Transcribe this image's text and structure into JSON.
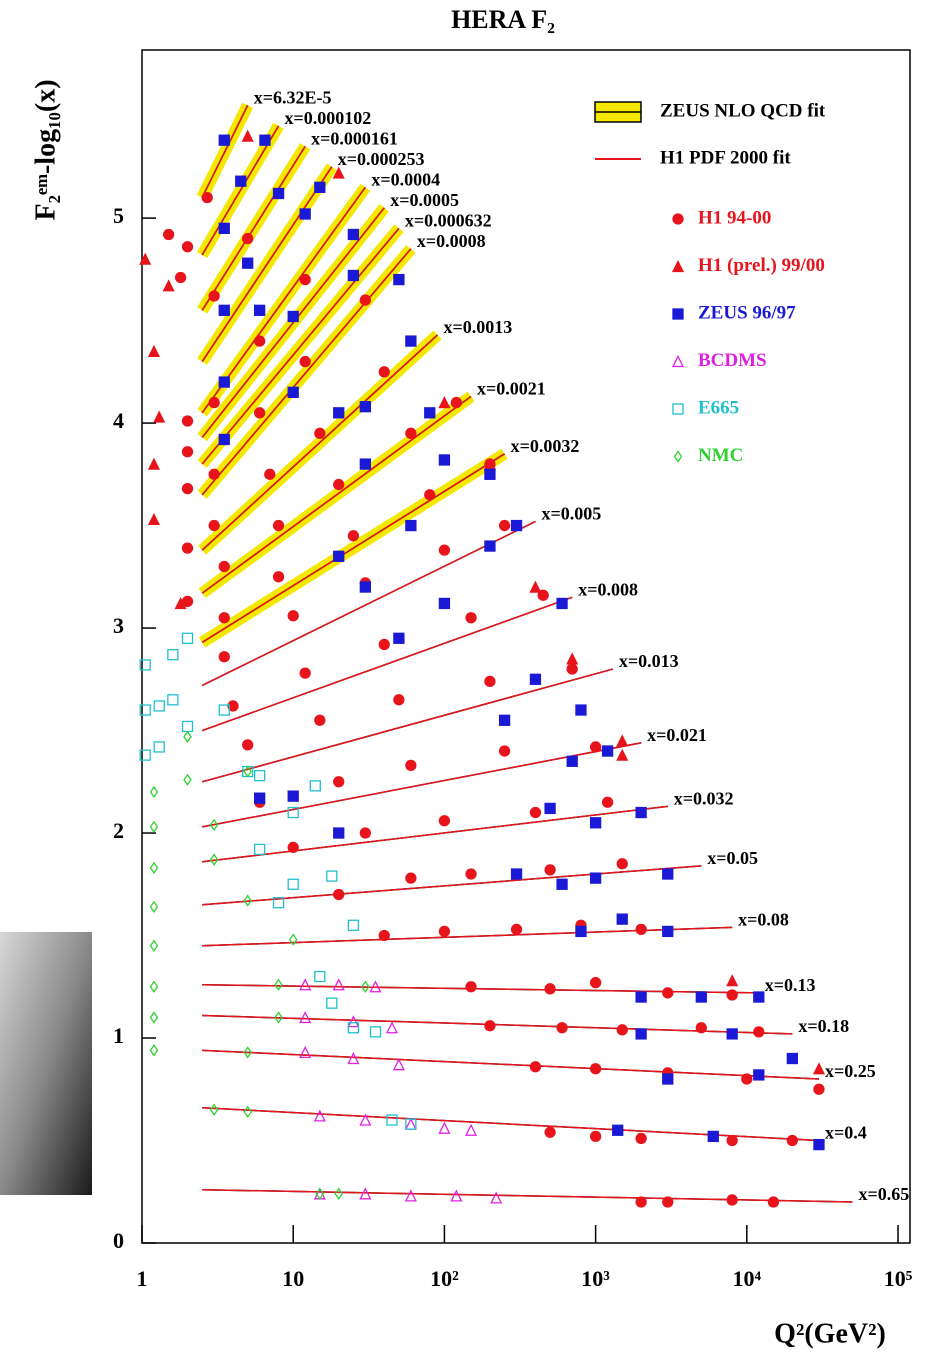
{
  "chart_data": {
    "type": "scatter",
    "title": "HERA F₂",
    "x_label": "Q²(GeV²)",
    "y_label": "F₂ᵉᵐ-log₁₀(x)",
    "log_x": true,
    "xlim": [
      1,
      120000
    ],
    "ylim": [
      0,
      5.82
    ],
    "xticks": [
      1,
      10,
      {
        "value": 100,
        "label": "10²"
      },
      {
        "value": 1000,
        "label": "10³"
      },
      {
        "value": 10000,
        "label": "10⁴"
      },
      {
        "value": 100000,
        "label": "10⁵"
      }
    ],
    "yticks": [
      0,
      1,
      2,
      3,
      4,
      5
    ],
    "fit_legend": [
      {
        "name": "ZEUS NLO QCD fit",
        "color": "#f5e800"
      },
      {
        "name": "H1 PDF 2000 fit",
        "color": "#e8141c"
      }
    ],
    "bins": [
      {
        "name": "x=0.65",
        "x": [
          2.5,
          50000
        ],
        "y": [
          0.26,
          0.2
        ]
      },
      {
        "name": "x=0.4",
        "x": [
          2.5,
          30000
        ],
        "y": [
          0.66,
          0.5
        ]
      },
      {
        "name": "x=0.25",
        "x": [
          2.5,
          30000
        ],
        "y": [
          0.94,
          0.8
        ]
      },
      {
        "name": "x=0.18",
        "x": [
          2.5,
          20000
        ],
        "y": [
          1.11,
          1.02
        ]
      },
      {
        "name": "x=0.13",
        "x": [
          2.5,
          12000
        ],
        "y": [
          1.26,
          1.22
        ]
      },
      {
        "name": "x=0.08",
        "x": [
          2.5,
          8000
        ],
        "y": [
          1.45,
          1.54
        ]
      },
      {
        "name": "x=0.05",
        "x": [
          2.5,
          5000
        ],
        "y": [
          1.65,
          1.84
        ]
      },
      {
        "name": "x=0.032",
        "x": [
          2.5,
          3000
        ],
        "y": [
          1.86,
          2.13
        ]
      },
      {
        "name": "x=0.021",
        "x": [
          2.5,
          2000
        ],
        "y": [
          2.03,
          2.44
        ]
      },
      {
        "name": "x=0.013",
        "x": [
          2.5,
          1300
        ],
        "y": [
          2.25,
          2.8
        ]
      },
      {
        "name": "x=0.008",
        "x": [
          2.5,
          700
        ],
        "y": [
          2.5,
          3.15
        ]
      },
      {
        "name": "x=0.005",
        "x": [
          2.5,
          400
        ],
        "y": [
          2.72,
          3.52
        ]
      },
      {
        "name": "x=0.0032",
        "x": [
          2.5,
          250
        ],
        "y": [
          2.93,
          3.85
        ],
        "band": true
      },
      {
        "name": "x=0.0021",
        "x": [
          2.5,
          150
        ],
        "y": [
          3.17,
          4.13
        ],
        "band": true
      },
      {
        "name": "x=0.0013",
        "x": [
          2.5,
          90
        ],
        "y": [
          3.38,
          4.43
        ],
        "band": true
      },
      {
        "name": "x=0.0008",
        "x": [
          2.5,
          60
        ],
        "y": [
          3.65,
          4.85
        ],
        "band": true
      },
      {
        "name": "x=0.000632",
        "x": [
          2.5,
          50
        ],
        "y": [
          3.8,
          4.95
        ],
        "band": true
      },
      {
        "name": "x=0.0005",
        "x": [
          2.5,
          40
        ],
        "y": [
          3.93,
          5.05
        ],
        "band": true
      },
      {
        "name": "x=0.0004",
        "x": [
          2.5,
          30
        ],
        "y": [
          4.05,
          5.15
        ],
        "band": true
      },
      {
        "name": "x=0.000253",
        "x": [
          2.5,
          18
        ],
        "y": [
          4.3,
          5.25
        ],
        "band": true
      },
      {
        "name": "x=0.000161",
        "x": [
          2.5,
          12
        ],
        "y": [
          4.55,
          5.35
        ],
        "band": true
      },
      {
        "name": "x=0.000102",
        "x": [
          2.5,
          8
        ],
        "y": [
          4.82,
          5.45
        ],
        "band": true
      },
      {
        "name": "x=6.32E-5",
        "x": [
          2.5,
          5
        ],
        "y": [
          5.1,
          5.55
        ],
        "band": true
      }
    ],
    "series": [
      {
        "name": "H1 94-00",
        "color": "#e8141c",
        "marker": "circle",
        "x": [
          1.5,
          1.8,
          2,
          2,
          2,
          2,
          2,
          2,
          2000,
          3000,
          8000,
          15000,
          500,
          1000,
          2000,
          8000,
          20000,
          400,
          1000,
          3000,
          10000,
          30000,
          200,
          600,
          1500,
          5000,
          12000,
          150,
          500,
          1000,
          3000,
          8000,
          40,
          100,
          300,
          800,
          2000,
          20,
          60,
          150,
          500,
          1500,
          10,
          30,
          100,
          400,
          1200,
          6,
          20,
          60,
          250,
          1000,
          5,
          15,
          50,
          200,
          700,
          4,
          12,
          40,
          150,
          450,
          3.5,
          10,
          30,
          100,
          250,
          3.5,
          8,
          25,
          80,
          200,
          3.5,
          8,
          20,
          60,
          120,
          3,
          7,
          15,
          40,
          3,
          6,
          12,
          30,
          3,
          6,
          12,
          3,
          5,
          2.7
        ],
        "y": [
          4.92,
          4.71,
          4.86,
          4.01,
          3.86,
          3.68,
          3.39,
          3.13,
          0.2,
          0.2,
          0.21,
          0.2,
          0.54,
          0.52,
          0.51,
          0.5,
          0.5,
          0.86,
          0.85,
          0.83,
          0.8,
          0.75,
          1.06,
          1.05,
          1.04,
          1.05,
          1.03,
          1.25,
          1.24,
          1.27,
          1.22,
          1.21,
          1.5,
          1.52,
          1.53,
          1.55,
          1.53,
          1.7,
          1.78,
          1.8,
          1.82,
          1.85,
          1.93,
          2,
          2.06,
          2.1,
          2.15,
          2.15,
          2.25,
          2.33,
          2.4,
          2.42,
          2.43,
          2.55,
          2.65,
          2.74,
          2.8,
          2.62,
          2.78,
          2.92,
          3.05,
          3.16,
          2.86,
          3.06,
          3.22,
          3.38,
          3.5,
          3.05,
          3.25,
          3.45,
          3.65,
          3.8,
          3.3,
          3.5,
          3.7,
          3.95,
          4.1,
          3.5,
          3.75,
          3.95,
          4.25,
          3.75,
          4.05,
          4.3,
          4.6,
          4.1,
          4.4,
          4.7,
          4.62,
          4.9,
          5.1
        ]
      },
      {
        "name": "H1 (prel.) 99/00",
        "color": "#e8141c",
        "marker": "triangle",
        "x": [
          1.05,
          1.2,
          1.3,
          1.2,
          1.2,
          1.5,
          1.8,
          5,
          20,
          100,
          200,
          400,
          700,
          1500,
          1500,
          8000,
          30000
        ],
        "y": [
          4.8,
          4.35,
          4.03,
          3.8,
          3.53,
          4.67,
          3.12,
          5.4,
          5.22,
          4.1,
          3.8,
          3.2,
          2.85,
          2.45,
          2.38,
          1.28,
          0.85
        ]
      },
      {
        "name": "ZEUS 96/97",
        "color": "#1a1ad6",
        "marker": "square",
        "x": [
          3.5,
          4.5,
          6.5,
          8,
          12,
          15,
          25,
          25,
          50,
          60,
          3.5,
          5,
          3.5,
          6,
          10,
          3.5,
          10,
          3.5,
          20,
          30,
          80,
          30,
          100,
          200,
          20,
          60,
          300,
          30,
          200,
          100,
          600,
          50,
          400,
          800,
          250,
          700,
          1200,
          500,
          1000,
          2000,
          6,
          10,
          20,
          300,
          600,
          1000,
          3000,
          800,
          1500,
          3000,
          2000,
          5000,
          12000,
          2000,
          8000,
          20000,
          3000,
          12000,
          1400,
          6000,
          30000
        ],
        "y": [
          5.38,
          5.18,
          5.38,
          5.12,
          5.02,
          5.15,
          4.92,
          4.72,
          4.7,
          4.4,
          4.95,
          4.78,
          4.55,
          4.55,
          4.52,
          4.2,
          4.15,
          3.92,
          4.05,
          4.08,
          4.05,
          3.8,
          3.82,
          3.75,
          3.35,
          3.5,
          3.5,
          3.2,
          3.4,
          3.12,
          3.12,
          2.95,
          2.75,
          2.6,
          2.55,
          2.35,
          2.4,
          2.12,
          2.05,
          2.1,
          2.17,
          2.18,
          2,
          1.8,
          1.75,
          1.78,
          1.8,
          1.52,
          1.58,
          1.52,
          1.2,
          1.2,
          1.2,
          1.02,
          1.02,
          0.9,
          0.8,
          0.82,
          0.55,
          0.52,
          0.48
        ]
      },
      {
        "name": "BCDMS",
        "color": "#e020e0",
        "marker": "triangle-open",
        "x": [
          12,
          20,
          35,
          12,
          25,
          45,
          12,
          25,
          50,
          15,
          30,
          60,
          100,
          150,
          15,
          30,
          60,
          120,
          220
        ],
        "y": [
          1.26,
          1.26,
          1.25,
          1.1,
          1.08,
          1.05,
          0.93,
          0.9,
          0.87,
          0.62,
          0.6,
          0.58,
          0.56,
          0.55,
          0.24,
          0.24,
          0.23,
          0.23,
          0.22
        ]
      },
      {
        "name": "E665",
        "color": "#20c0d0",
        "marker": "square-open",
        "x": [
          1.05,
          1.05,
          1.05,
          1.3,
          1.3,
          1.6,
          1.6,
          2,
          2,
          3.5,
          5,
          6,
          10,
          14,
          10,
          18,
          25,
          15,
          18,
          25,
          35,
          45,
          60,
          8,
          6
        ],
        "y": [
          2.82,
          2.6,
          2.38,
          2.62,
          2.42,
          2.87,
          2.65,
          2.95,
          2.52,
          2.6,
          2.3,
          2.28,
          2.1,
          2.23,
          1.75,
          1.79,
          1.55,
          1.3,
          1.17,
          1.05,
          1.03,
          0.6,
          0.58,
          1.66,
          1.92
        ]
      },
      {
        "name": "NMC",
        "color": "#30d030",
        "marker": "diamond-open",
        "x": [
          1.2,
          1.2,
          1.2,
          1.2,
          1.2,
          1.2,
          1.2,
          1.2,
          2,
          2,
          3,
          5,
          5,
          8,
          8,
          15,
          20,
          30,
          10,
          5,
          5,
          3,
          3
        ],
        "y": [
          0.94,
          1.1,
          1.25,
          1.45,
          1.64,
          1.83,
          2.03,
          2.2,
          2.26,
          2.47,
          0.65,
          0.64,
          0.93,
          1.1,
          1.26,
          0.24,
          0.24,
          1.25,
          1.48,
          1.67,
          2.3,
          2.04,
          1.87
        ]
      }
    ]
  }
}
